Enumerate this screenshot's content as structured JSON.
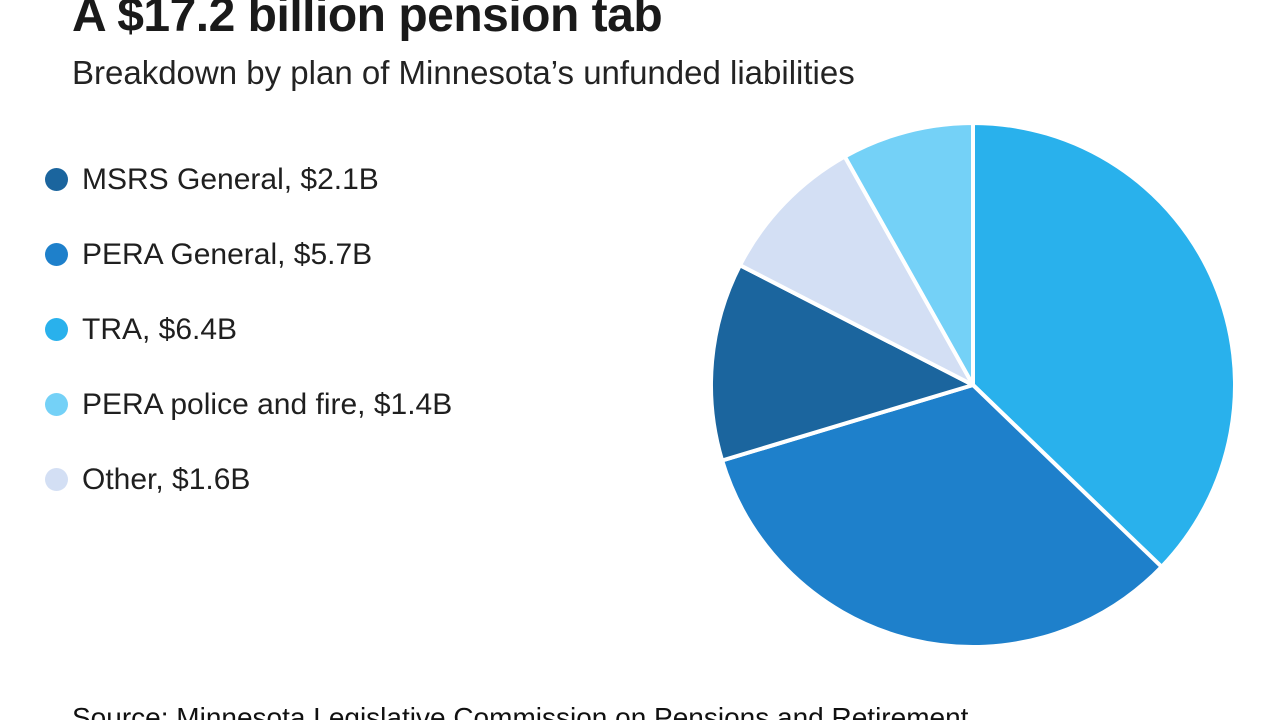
{
  "header": {
    "title": "A $17.2 billion pension tab",
    "subtitle": "Breakdown by plan of Minnesota’s unfunded liabilities"
  },
  "chart_data": {
    "type": "pie",
    "title": "A $17.2 billion pension tab",
    "subtitle": "Breakdown by plan of Minnesota’s unfunded liabilities",
    "unit": "billions of dollars",
    "total_value": 17.2,
    "total_label": "$17.2 billion",
    "legend_position": "left",
    "slices": [
      {
        "id": "msrs-general",
        "label": "MSRS General",
        "value": 2.1,
        "value_label": "$2.1B",
        "legend_label": "MSRS General, $2.1B",
        "color": "#1b659e"
      },
      {
        "id": "pera-general",
        "label": "PERA General",
        "value": 5.7,
        "value_label": "$5.7B",
        "legend_label": "PERA General, $5.7B",
        "color": "#1e80cb"
      },
      {
        "id": "tra",
        "label": "TRA",
        "value": 6.4,
        "value_label": "$6.4B",
        "legend_label": "TRA, $6.4B",
        "color": "#29b1ec"
      },
      {
        "id": "pera-police-fire",
        "label": "PERA police and fire",
        "value": 1.4,
        "value_label": "$1.4B",
        "legend_label": "PERA police and fire, $1.4B",
        "color": "#74d1f7"
      },
      {
        "id": "other",
        "label": "Other",
        "value": 1.6,
        "value_label": "$1.6B",
        "legend_label": "Other, $1.6B",
        "color": "#d3dff4"
      }
    ],
    "draw_order_clockwise_from_top": [
      "tra",
      "pera-general",
      "msrs-general",
      "other",
      "pera-police-fire"
    ],
    "slice_divider_color": "#ffffff"
  },
  "source": {
    "text": "Source: Minnesota Legislative Commission on Pensions and Retirement"
  }
}
